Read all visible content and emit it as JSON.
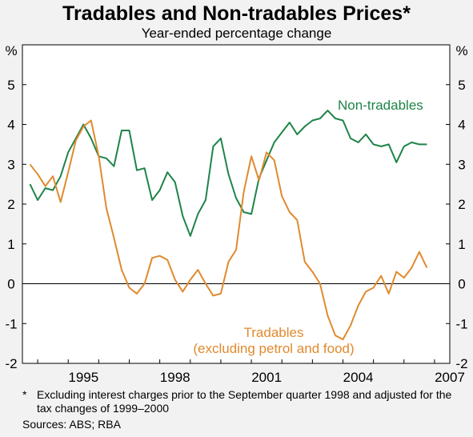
{
  "title": "Tradables and Non-tradables Prices*",
  "subtitle": "Year-ended percentage change",
  "footnote": {
    "marker": "*",
    "text": "Excluding interest charges prior to the September quarter 1998 and adjusted for the tax changes of 1999–2000"
  },
  "sources": "Sources: ABS; RBA",
  "chart_data": {
    "type": "line",
    "y_unit_label": "%",
    "ylim": [
      -2,
      6
    ],
    "y_ticks": [
      -2,
      -1,
      0,
      1,
      2,
      3,
      4,
      5
    ],
    "xlim": [
      1993.5,
      2007.5
    ],
    "x_ticks": [
      1995,
      1998,
      2001,
      2004,
      2007
    ],
    "grid": false,
    "zero_line": true,
    "series": [
      {
        "name": "Non-tradables",
        "color": "#1e8449",
        "x": [
          1993.75,
          1994.0,
          1994.25,
          1994.5,
          1994.75,
          1995.0,
          1995.25,
          1995.5,
          1995.75,
          1996.0,
          1996.25,
          1996.5,
          1996.75,
          1997.0,
          1997.25,
          1997.5,
          1997.75,
          1998.0,
          1998.25,
          1998.5,
          1998.75,
          1999.0,
          1999.25,
          1999.5,
          1999.75,
          2000.0,
          2000.25,
          2000.5,
          2000.75,
          2001.0,
          2001.25,
          2001.5,
          2001.75,
          2002.0,
          2002.25,
          2002.5,
          2002.75,
          2003.0,
          2003.25,
          2003.5,
          2003.75,
          2004.0,
          2004.25,
          2004.5,
          2004.75,
          2005.0,
          2005.25,
          2005.5,
          2005.75,
          2006.0,
          2006.25,
          2006.5,
          2006.75
        ],
        "values": [
          2.5,
          2.1,
          2.4,
          2.35,
          2.7,
          3.3,
          3.65,
          4.0,
          3.65,
          3.2,
          3.15,
          2.95,
          3.85,
          3.85,
          2.85,
          2.9,
          2.1,
          2.35,
          2.8,
          2.55,
          1.7,
          1.2,
          1.75,
          2.1,
          3.45,
          3.65,
          2.75,
          2.15,
          1.8,
          1.75,
          2.65,
          3.1,
          3.55,
          3.8,
          4.05,
          3.75,
          3.95,
          4.1,
          4.15,
          4.35,
          4.15,
          4.1,
          3.65,
          3.55,
          3.75,
          3.5,
          3.45,
          3.5,
          3.05,
          3.45,
          3.55,
          3.5,
          3.5
        ]
      },
      {
        "name": "Tradables",
        "name_detail": "(excluding petrol and food)",
        "color": "#e08a2e",
        "x": [
          1993.75,
          1994.0,
          1994.25,
          1994.5,
          1994.75,
          1995.0,
          1995.25,
          1995.5,
          1995.75,
          1996.0,
          1996.25,
          1996.5,
          1996.75,
          1997.0,
          1997.25,
          1997.5,
          1997.75,
          1998.0,
          1998.25,
          1998.5,
          1998.75,
          1999.0,
          1999.25,
          1999.5,
          1999.75,
          2000.0,
          2000.25,
          2000.5,
          2000.75,
          2001.0,
          2001.25,
          2001.5,
          2001.75,
          2002.0,
          2002.25,
          2002.5,
          2002.75,
          2003.0,
          2003.25,
          2003.5,
          2003.75,
          2004.0,
          2004.25,
          2004.5,
          2004.75,
          2005.0,
          2005.25,
          2005.5,
          2005.75,
          2006.0,
          2006.25,
          2006.5,
          2006.75
        ],
        "values": [
          3.0,
          2.75,
          2.45,
          2.7,
          2.05,
          2.8,
          3.6,
          3.95,
          4.1,
          3.2,
          1.9,
          1.15,
          0.35,
          -0.1,
          -0.25,
          0.0,
          0.65,
          0.7,
          0.6,
          0.1,
          -0.2,
          0.1,
          0.35,
          0.0,
          -0.3,
          -0.25,
          0.55,
          0.85,
          2.3,
          3.2,
          2.6,
          3.3,
          3.1,
          2.2,
          1.8,
          1.6,
          0.55,
          0.3,
          0.0,
          -0.8,
          -1.3,
          -1.4,
          -1.05,
          -0.55,
          -0.2,
          -0.1,
          0.2,
          -0.25,
          0.3,
          0.15,
          0.4,
          0.8,
          0.4
        ]
      }
    ]
  }
}
